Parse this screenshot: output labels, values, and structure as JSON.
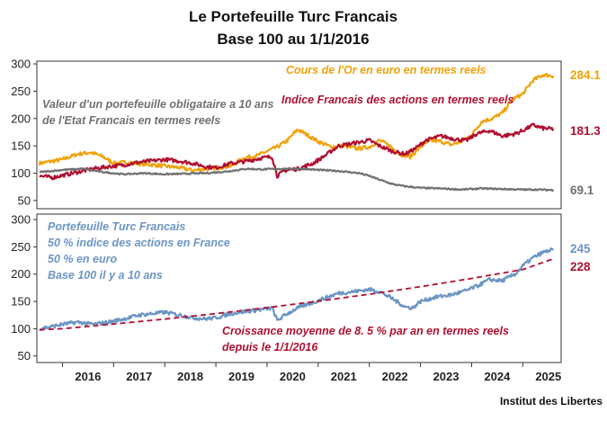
{
  "chart_data": {
    "type": "line",
    "title": [
      "Le Portefeuille Turc Francais",
      "Base 100  au 1/1/2016"
    ],
    "credit": "Institut des Libertes",
    "x_ticks": [
      "2016",
      "2017",
      "2018",
      "2019",
      "2020",
      "2021",
      "2022",
      "2023",
      "2024",
      "2025"
    ],
    "xlim": [
      2015.5,
      2025.75
    ],
    "panels": [
      {
        "name": "top",
        "ylim": [
          35,
          305
        ],
        "yticks": [
          50,
          100,
          150,
          200,
          250,
          300
        ],
        "series": [
          {
            "name": "Cours de l'Or en euro en termes reels",
            "color": "#f0a20a",
            "end_label": "284.1",
            "label": "Cours de l'Or en euro en termes reels",
            "points": [
              [
                2015.55,
                118
              ],
              [
                2015.8,
                122
              ],
              [
                2016.0,
                125
              ],
              [
                2016.3,
                135
              ],
              [
                2016.55,
                138
              ],
              [
                2016.8,
                130
              ],
              [
                2017.0,
                118
              ],
              [
                2017.3,
                120
              ],
              [
                2017.55,
                117
              ],
              [
                2017.8,
                115
              ],
              [
                2018.0,
                113
              ],
              [
                2018.3,
                110
              ],
              [
                2018.55,
                105
              ],
              [
                2018.8,
                108
              ],
              [
                2019.0,
                110
              ],
              [
                2019.3,
                113
              ],
              [
                2019.55,
                128
              ],
              [
                2019.8,
                132
              ],
              [
                2020.0,
                140
              ],
              [
                2020.2,
                148
              ],
              [
                2020.4,
                160
              ],
              [
                2020.6,
                180
              ],
              [
                2020.75,
                172
              ],
              [
                2021.0,
                158
              ],
              [
                2021.25,
                148
              ],
              [
                2021.5,
                150
              ],
              [
                2021.75,
                145
              ],
              [
                2022.0,
                148
              ],
              [
                2022.2,
                160
              ],
              [
                2022.4,
                150
              ],
              [
                2022.6,
                135
              ],
              [
                2022.8,
                130
              ],
              [
                2023.0,
                148
              ],
              [
                2023.2,
                160
              ],
              [
                2023.4,
                158
              ],
              [
                2023.6,
                152
              ],
              [
                2023.8,
                158
              ],
              [
                2024.0,
                170
              ],
              [
                2024.2,
                195
              ],
              [
                2024.4,
                200
              ],
              [
                2024.6,
                210
              ],
              [
                2024.8,
                235
              ],
              [
                2025.0,
                245
              ],
              [
                2025.2,
                270
              ],
              [
                2025.4,
                280
              ],
              [
                2025.6,
                278
              ]
            ]
          },
          {
            "name": "Indice Francais des actions en termes reels",
            "color": "#b01030",
            "end_label": "181.3",
            "label": "Indice Francais des actions en termes reels",
            "points": [
              [
                2015.55,
                95
              ],
              [
                2015.8,
                92
              ],
              [
                2016.0,
                96
              ],
              [
                2016.3,
                102
              ],
              [
                2016.6,
                108
              ],
              [
                2016.9,
                112
              ],
              [
                2017.2,
                115
              ],
              [
                2017.5,
                120
              ],
              [
                2017.8,
                123
              ],
              [
                2018.0,
                125
              ],
              [
                2018.3,
                122
              ],
              [
                2018.55,
                118
              ],
              [
                2018.8,
                112
              ],
              [
                2019.0,
                110
              ],
              [
                2019.3,
                118
              ],
              [
                2019.6,
                122
              ],
              [
                2019.9,
                128
              ],
              [
                2020.1,
                130
              ],
              [
                2020.2,
                95
              ],
              [
                2020.35,
                105
              ],
              [
                2020.6,
                108
              ],
              [
                2020.9,
                118
              ],
              [
                2021.1,
                130
              ],
              [
                2021.4,
                150
              ],
              [
                2021.7,
                155
              ],
              [
                2022.0,
                160
              ],
              [
                2022.2,
                150
              ],
              [
                2022.45,
                140
              ],
              [
                2022.7,
                135
              ],
              [
                2022.9,
                145
              ],
              [
                2023.1,
                160
              ],
              [
                2023.4,
                168
              ],
              [
                2023.7,
                162
              ],
              [
                2023.9,
                160
              ],
              [
                2024.1,
                172
              ],
              [
                2024.35,
                178
              ],
              [
                2024.6,
                168
              ],
              [
                2024.85,
                172
              ],
              [
                2025.0,
                178
              ],
              [
                2025.2,
                188
              ],
              [
                2025.4,
                182
              ],
              [
                2025.6,
                181
              ]
            ]
          },
          {
            "name": "Valeur d'un portefeuille obligataire a 10 ans de l'Etat Francais en termes reels",
            "color": "#707070",
            "end_label": "69.1",
            "label": [
              "Valeur d'un portefeuille obligataire a 10 ans",
              "de l'Etat Francais en termes reels"
            ],
            "points": [
              [
                2015.55,
                102
              ],
              [
                2015.8,
                104
              ],
              [
                2016.0,
                106
              ],
              [
                2016.4,
                108
              ],
              [
                2016.8,
                102
              ],
              [
                2017.2,
                98
              ],
              [
                2017.6,
                100
              ],
              [
                2018.0,
                98
              ],
              [
                2018.4,
                99
              ],
              [
                2018.8,
                100
              ],
              [
                2019.2,
                103
              ],
              [
                2019.6,
                108
              ],
              [
                2019.9,
                107
              ],
              [
                2020.3,
                108
              ],
              [
                2020.7,
                108
              ],
              [
                2021.0,
                106
              ],
              [
                2021.4,
                104
              ],
              [
                2021.8,
                100
              ],
              [
                2022.0,
                95
              ],
              [
                2022.2,
                88
              ],
              [
                2022.45,
                80
              ],
              [
                2022.7,
                76
              ],
              [
                2023.0,
                73
              ],
              [
                2023.4,
                72
              ],
              [
                2023.8,
                70
              ],
              [
                2024.2,
                72
              ],
              [
                2024.6,
                71
              ],
              [
                2025.0,
                70
              ],
              [
                2025.3,
                70
              ],
              [
                2025.6,
                69
              ]
            ]
          }
        ]
      },
      {
        "name": "bottom",
        "ylim": [
          38,
          310
        ],
        "yticks": [
          50,
          100,
          150,
          200,
          250,
          300
        ],
        "series": [
          {
            "name": "Portefeuille Turc Francais",
            "color": "#6b95c4",
            "end_label": "245",
            "label": [
              "Portefeuille Turc Francais",
              "50 % indice des actions en France",
              "50 % en euro",
              "Base 100 il y a 10 ans"
            ],
            "points": [
              [
                2015.55,
                100
              ],
              [
                2015.8,
                104
              ],
              [
                2016.0,
                108
              ],
              [
                2016.3,
                112
              ],
              [
                2016.6,
                108
              ],
              [
                2016.9,
                112
              ],
              [
                2017.2,
                118
              ],
              [
                2017.5,
                125
              ],
              [
                2017.8,
                128
              ],
              [
                2018.0,
                130
              ],
              [
                2018.3,
                125
              ],
              [
                2018.55,
                120
              ],
              [
                2018.8,
                118
              ],
              [
                2019.0,
                120
              ],
              [
                2019.3,
                128
              ],
              [
                2019.6,
                132
              ],
              [
                2019.9,
                135
              ],
              [
                2020.1,
                138
              ],
              [
                2020.2,
                115
              ],
              [
                2020.35,
                125
              ],
              [
                2020.6,
                138
              ],
              [
                2020.9,
                148
              ],
              [
                2021.1,
                155
              ],
              [
                2021.4,
                165
              ],
              [
                2021.7,
                168
              ],
              [
                2022.0,
                172
              ],
              [
                2022.2,
                168
              ],
              [
                2022.45,
                155
              ],
              [
                2022.7,
                140
              ],
              [
                2022.85,
                138
              ],
              [
                2023.0,
                150
              ],
              [
                2023.3,
                158
              ],
              [
                2023.6,
                162
              ],
              [
                2023.9,
                170
              ],
              [
                2024.1,
                178
              ],
              [
                2024.35,
                190
              ],
              [
                2024.6,
                188
              ],
              [
                2024.85,
                200
              ],
              [
                2025.0,
                215
              ],
              [
                2025.2,
                230
              ],
              [
                2025.4,
                240
              ],
              [
                2025.6,
                245
              ]
            ]
          },
          {
            "name": "Croissance moyenne",
            "color": "#b01030",
            "style": "dashed",
            "end_label": "228",
            "label": [
              "Croissance moyenne de 8. 5 % par an en termes reels",
              "depuis le 1/1/2016"
            ],
            "points": [
              [
                2015.55,
                98
              ],
              [
                2016.0,
                100
              ],
              [
                2017.0,
                108.5
              ],
              [
                2018.0,
                117.7
              ],
              [
                2019.0,
                127.7
              ],
              [
                2020.0,
                138.6
              ],
              [
                2021.0,
                150.4
              ],
              [
                2022.0,
                163.2
              ],
              [
                2023.0,
                177.0
              ],
              [
                2024.0,
                192.1
              ],
              [
                2025.0,
                208.4
              ],
              [
                2025.6,
                228
              ]
            ]
          }
        ]
      }
    ]
  }
}
